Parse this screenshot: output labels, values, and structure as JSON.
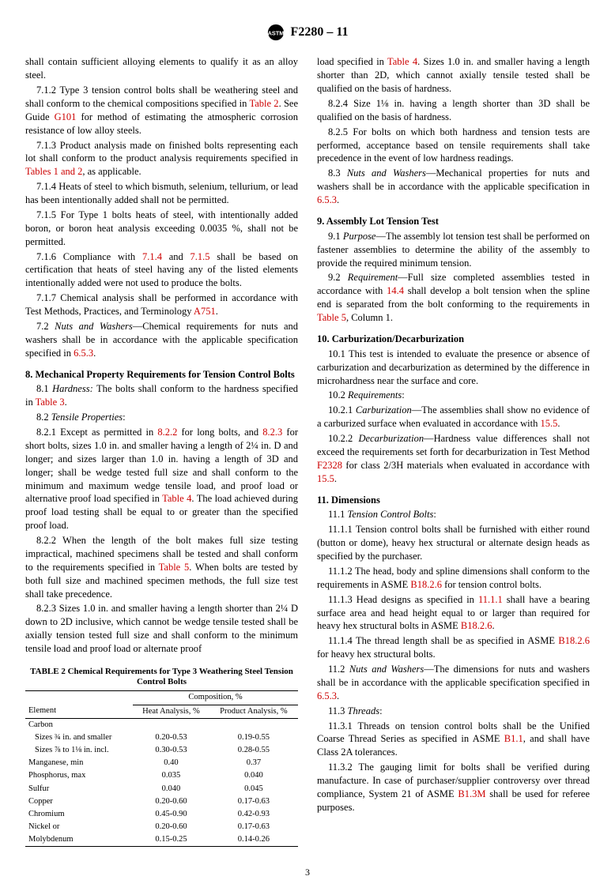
{
  "header": {
    "designation": "F2280 – 11"
  },
  "leftcol": {
    "p0": "shall contain sufficient alloying elements to qualify it as an alloy steel.",
    "p712a": "7.1.2 Type 3 tension control bolts shall be weathering steel and shall conform to the chemical compositions specified in ",
    "p712_ref1": "Table 2",
    "p712b": ". See Guide ",
    "p712_ref2": "G101",
    "p712c": " for method of estimating the atmospheric corrosion resistance of low alloy steels.",
    "p713a": "7.1.3 Product analysis made on finished bolts representing each lot shall conform to the product analysis requirements specified in ",
    "p713_ref": "Tables 1 and 2",
    "p713b": ", as applicable.",
    "p714": "7.1.4 Heats of steel to which bismuth, selenium, tellurium, or lead has been intentionally added shall not be permitted.",
    "p715": "7.1.5 For Type 1 bolts heats of steel, with intentionally added boron, or boron heat analysis exceeding 0.0035 %, shall not be permitted.",
    "p716a": "7.1.6 Compliance with ",
    "p716_r1": "7.1.4",
    "p716b": " and ",
    "p716_r2": "7.1.5",
    "p716c": " shall be based on certification that heats of steel having any of the listed elements intentionally added were not used to produce the bolts.",
    "p717a": "7.1.7 Chemical analysis shall be performed in accordance with Test Methods, Practices, and Terminology ",
    "p717_r": "A751",
    "p717b": ".",
    "p72a": "7.2 ",
    "p72_i": "Nuts and Washers",
    "p72b": "—Chemical requirements for nuts and washers shall be in accordance with the applicable specification specified in ",
    "p72_r": "6.5.3",
    "p72c": ".",
    "h8": "8. Mechanical Property Requirements for Tension Control Bolts",
    "p81a": "8.1 ",
    "p81_i": "Hardness:",
    "p81b": " The bolts shall conform to the hardness specified in ",
    "p81_r": "Table 3",
    "p81c": ".",
    "p82a": "8.2 ",
    "p82_i": "Tensile Properties",
    "p82b": ":",
    "p821a": "8.2.1 Except as permitted in ",
    "p821_r1": "8.2.2",
    "p821b": " for long bolts, and ",
    "p821_r2": "8.2.3",
    "p821c": " for short bolts, sizes 1.0 in. and smaller having a length of 2¼ in. D and longer; and sizes larger than 1.0 in. having a length of 3D and longer; shall be wedge tested full size and shall conform to the minimum and maximum wedge tensile load, and proof load or alternative proof load specified in ",
    "p821_r3": "Table 4",
    "p821d": ". The load achieved during proof load testing shall be equal to or greater than the specified proof load.",
    "p822a": "8.2.2 When the length of the bolt makes full size testing impractical, machined specimens shall be tested and shall conform to the requirements specified in ",
    "p822_r": "Table 5",
    "p822b": ". When bolts are tested by both full size and machined specimen methods, the full size test shall take precedence.",
    "p823": "8.2.3 Sizes 1.0 in. and smaller having a length shorter than 2¼ D down to 2D inclusive, which cannot be wedge tensile tested shall be axially tension tested full size and shall conform to the minimum tensile load and proof load or alternate proof"
  },
  "rightcol": {
    "p823b_a": "load specified in ",
    "p823b_r": "Table 4",
    "p823b_b": ". Sizes 1.0 in. and smaller having a length shorter than 2D, which cannot axially tensile tested shall be qualified on the basis of hardness.",
    "p824": "8.2.4 Size 1⅛ in. having a length shorter than 3D shall be qualified on the basis of hardness.",
    "p825": "8.2.5 For bolts on which both hardness and tension tests are performed, acceptance based on tensile requirements shall take precedence in the event of low hardness readings.",
    "p83a": "8.3 ",
    "p83_i": "Nuts and Washers",
    "p83b": "—Mechanical properties for nuts and washers shall be in accordance with the applicable specification in ",
    "p83_r": "6.5.3",
    "p83c": ".",
    "h9": "9. Assembly Lot Tension Test",
    "p91a": "9.1 ",
    "p91_i": "Purpose",
    "p91b": "—The assembly lot tension test shall be performed on fastener assemblies to determine the ability of the assembly to provide the required minimum tension.",
    "p92a": "9.2 ",
    "p92_i": "Requirement",
    "p92b": "—Full size completed assemblies tested in accordance with ",
    "p92_r1": "14.4",
    "p92c": " shall develop a bolt tension when the spline end is separated from the bolt conforming to the requirements in ",
    "p92_r2": "Table 5",
    "p92d": ", Column 1.",
    "h10": "10. Carburization/Decarburization",
    "p101": "10.1 This test is intended to evaluate the presence or absence of carburization and decarburization as determined by the difference in microhardness near the surface and core.",
    "p102a": "10.2 ",
    "p102_i": "Requirements",
    "p102b": ":",
    "p1021a": "10.2.1 ",
    "p1021_i": "Carburization",
    "p1021b": "—The assemblies shall show no evidence of a carburized surface when evaluated in accordance with ",
    "p1021_r": "15.5",
    "p1021c": ".",
    "p1022a": "10.2.2 ",
    "p1022_i": "Decarburization",
    "p1022b": "—Hardness value differences shall not exceed the requirements set forth for decarburization in Test Method ",
    "p1022_r1": "F2328",
    "p1022c": " for class 2/3H materials when evaluated in accordance with ",
    "p1022_r2": "15.5",
    "p1022d": ".",
    "h11": "11. Dimensions",
    "p111a": "11.1 ",
    "p111_i": "Tension Control Bolts",
    "p111b": ":",
    "p1111": "11.1.1 Tension control bolts shall be furnished with either round (button or dome), heavy hex structural or alternate design heads as specified by the purchaser.",
    "p1112a": "11.1.2 The head, body and spline dimensions shall conform to the requirements in ASME ",
    "p1112_r": "B18.2.6",
    "p1112b": " for tension control bolts.",
    "p1113a": "11.1.3 Head designs as specified in ",
    "p1113_r1": "11.1.1",
    "p1113b": " shall have a bearing surface area and head height equal to or larger than required for heavy hex structural bolts in ASME ",
    "p1113_r2": "B18.2.6",
    "p1113c": ".",
    "p1114a": "11.1.4 The thread length shall be as specified in ASME ",
    "p1114_r": "B18.2.6",
    "p1114b": " for heavy hex structural bolts.",
    "p112a": "11.2 ",
    "p112_i": "Nuts and Washers",
    "p112b": "—The dimensions for nuts and washers shall be in accordance with the applicable specification specified in ",
    "p112_r": "6.5.3",
    "p112c": ".",
    "p113a": "11.3 ",
    "p113_i": "Threads",
    "p113b": ":",
    "p1131a": "11.3.1 Threads on tension control bolts shall be the Unified Coarse Thread Series as specified in ASME ",
    "p1131_r": "B1.1",
    "p1131b": ", and shall have Class 2A tolerances.",
    "p1132a": "11.3.2 The gauging limit for bolts shall be verified during manufacture. In case of purchaser/supplier controversy over thread compliance, System 21 of ASME ",
    "p1132_r": "B1.3M",
    "p1132b": " shall be used for referee purposes."
  },
  "table2": {
    "title": "TABLE 2  Chemical Requirements for Type 3 Weathering Steel Tension Control Bolts",
    "header_span": "Composition, %",
    "col0": "Element",
    "col1": "Heat Analysis, %",
    "col2": "Product Analysis, %",
    "rows": [
      {
        "el": "Carbon",
        "h": "",
        "p": ""
      },
      {
        "el": "Sizes ¾ in. and smaller",
        "h": "0.20-0.53",
        "p": "0.19-0.55",
        "sub": true
      },
      {
        "el": "Sizes ⅞ to 1⅛ in. incl.",
        "h": "0.30-0.53",
        "p": "0.28-0.55",
        "sub": true
      },
      {
        "el": "Manganese, min",
        "h": "0.40",
        "p": "0.37"
      },
      {
        "el": "Phosphorus, max",
        "h": "0.035",
        "p": "0.040"
      },
      {
        "el": "Sulfur",
        "h": "0.040",
        "p": "0.045"
      },
      {
        "el": "Copper",
        "h": "0.20-0.60",
        "p": "0.17-0.63"
      },
      {
        "el": "Chromium",
        "h": "0.45-0.90",
        "p": "0.42-0.93"
      },
      {
        "el": "Nickel or",
        "h": "0.20-0.60",
        "p": "0.17-0.63"
      },
      {
        "el": "Molybdenum",
        "h": "0.15-0.25",
        "p": "0.14-0.26"
      }
    ]
  },
  "pagenum": "3"
}
